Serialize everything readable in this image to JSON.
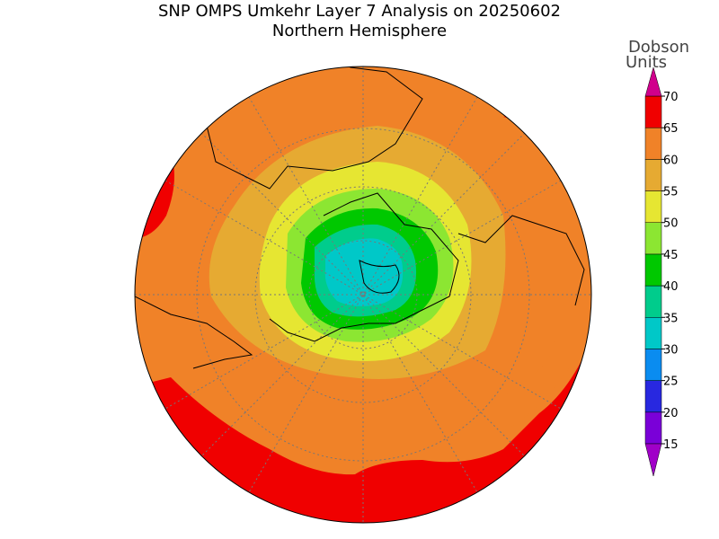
{
  "title": "SNP OMPS Umkehr Layer 7 Analysis on 20250602",
  "subtitle": "Northern Hemisphere",
  "colorbar": {
    "label": [
      "Dobson",
      "Units"
    ],
    "ticks": [
      15,
      20,
      25,
      30,
      35,
      40,
      45,
      50,
      55,
      60,
      65,
      70
    ],
    "colors": [
      "#7a00d8",
      "#2828e0",
      "#0a8cf0",
      "#00c8c8",
      "#00cc8c",
      "#00c800",
      "#8ce632",
      "#e6e632",
      "#e6aa32",
      "#f08228",
      "#f00000"
    ],
    "under_color": "#a000c8",
    "over_color": "#d0008c"
  }
}
